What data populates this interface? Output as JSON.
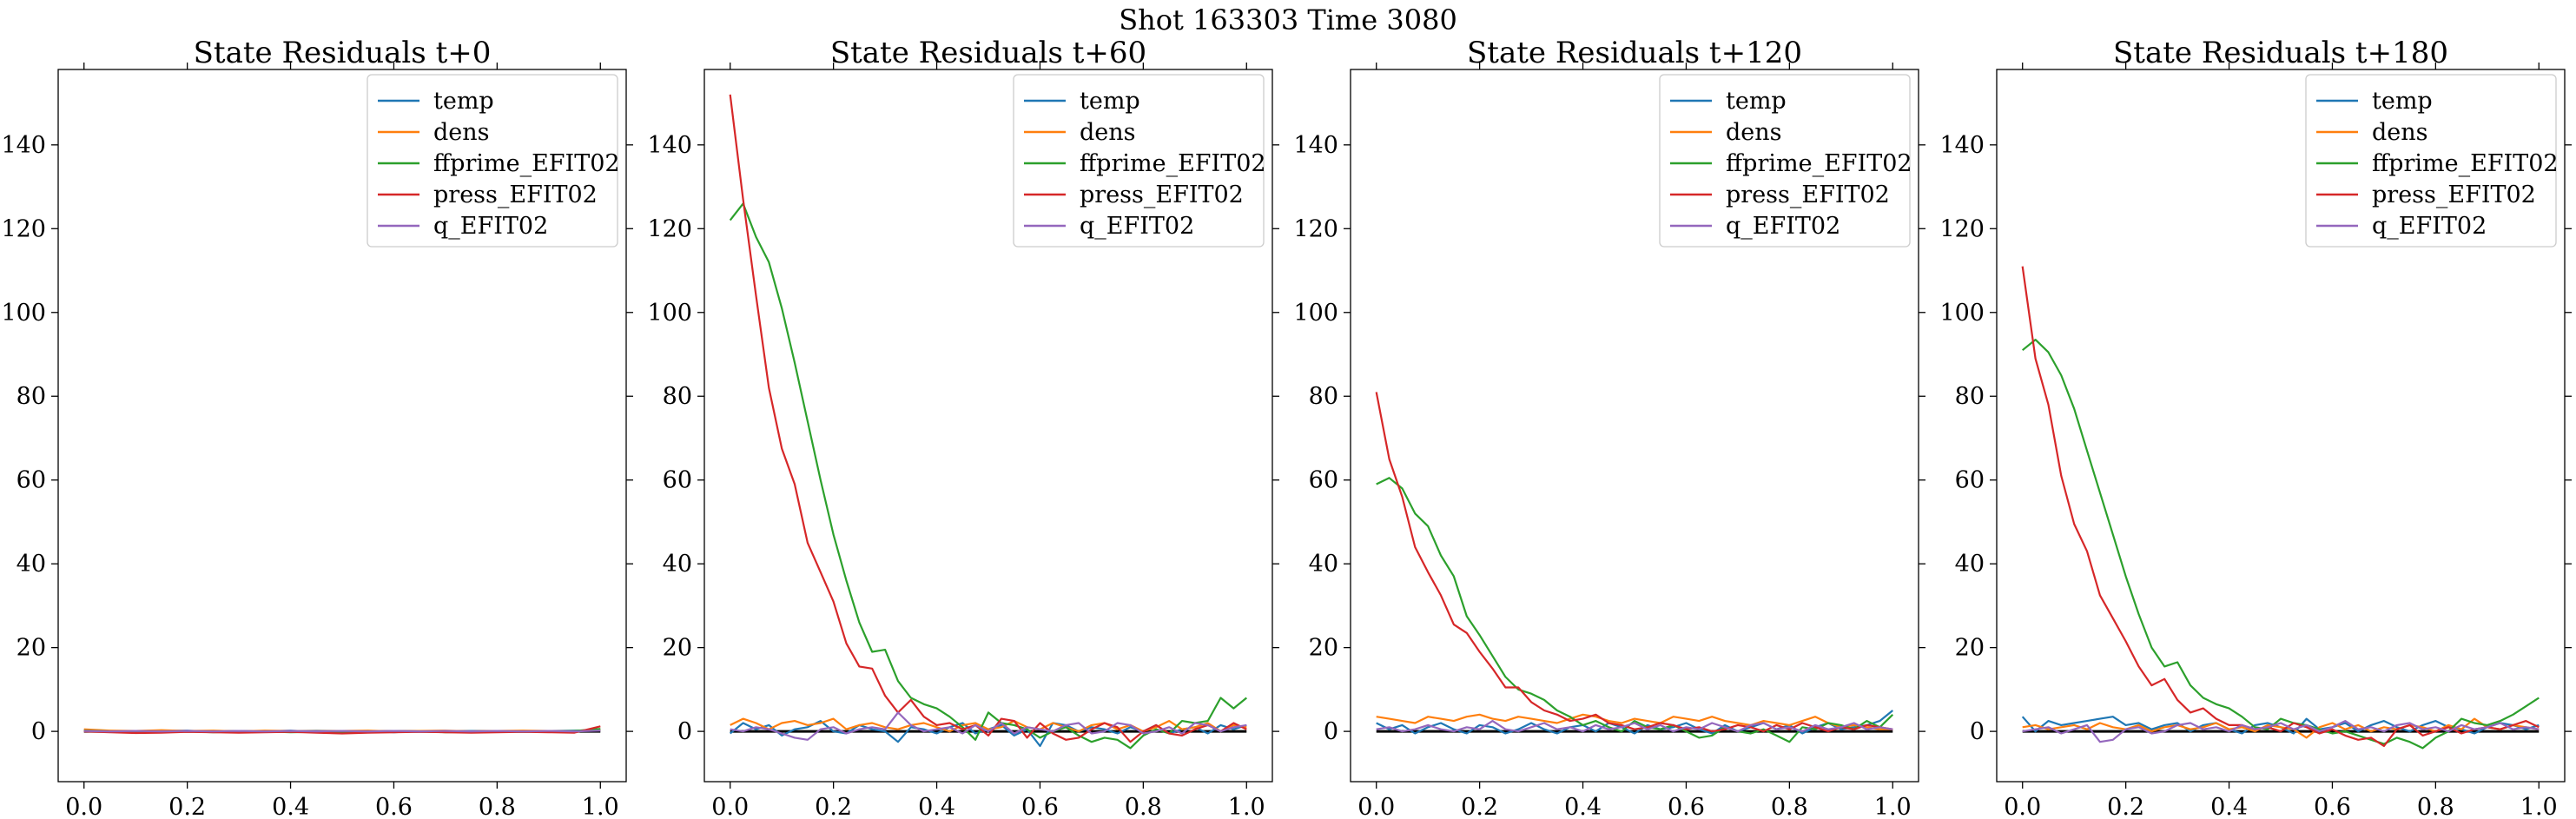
{
  "figure": {
    "suptitle": "Shot 163303   Time 3080"
  },
  "chart_data": [
    {
      "type": "line",
      "title": "State Residuals t+0",
      "xlim": [
        -0.05,
        1.05
      ],
      "ylim": [
        -12,
        158
      ],
      "xticks": [
        0.0,
        0.2,
        0.4,
        0.6,
        0.8,
        1.0
      ],
      "xtick_labels": [
        "0.0",
        "0.2",
        "0.4",
        "0.6",
        "0.8",
        "1.0"
      ],
      "yticks": [
        0,
        20,
        40,
        60,
        80,
        100,
        120,
        140
      ],
      "ytick_labels": [
        "0",
        "20",
        "40",
        "60",
        "80",
        "100",
        "120",
        "140"
      ],
      "legend": "top-right",
      "x": [
        0.0,
        0.05,
        0.1,
        0.15,
        0.2,
        0.25,
        0.3,
        0.35,
        0.4,
        0.45,
        0.5,
        0.55,
        0.6,
        0.65,
        0.7,
        0.75,
        0.8,
        0.85,
        0.9,
        0.95,
        1.0
      ],
      "series": [
        {
          "name": "temp",
          "color": "#1f77b4",
          "values": [
            0.3,
            0.1,
            -0.2,
            0.1,
            0.2,
            -0.1,
            0.1,
            0.0,
            0.2,
            -0.1,
            0.0,
            0.1,
            -0.2,
            0.1,
            0.0,
            0.1,
            -0.1,
            0.0,
            0.1,
            0.2,
            0.3
          ]
        },
        {
          "name": "dens",
          "color": "#ff7f0e",
          "values": [
            0.5,
            0.2,
            0.1,
            0.3,
            0.1,
            0.2,
            0.0,
            0.2,
            0.1,
            0.0,
            0.1,
            0.2,
            0.0,
            0.1,
            0.2,
            0.0,
            0.1,
            0.2,
            0.1,
            0.0,
            0.4
          ]
        },
        {
          "name": "ffprime_EFIT02",
          "color": "#2ca02c",
          "values": [
            0.2,
            0.0,
            -0.3,
            -0.1,
            0.0,
            -0.2,
            -0.1,
            0.0,
            -0.2,
            -0.1,
            -0.3,
            -0.2,
            -0.1,
            0.0,
            -0.2,
            -0.1,
            0.0,
            -0.1,
            0.0,
            0.1,
            0.6
          ]
        },
        {
          "name": "press_EFIT02",
          "color": "#d62728",
          "values": [
            0.0,
            -0.2,
            -0.4,
            -0.3,
            -0.1,
            -0.2,
            -0.3,
            -0.2,
            -0.1,
            -0.3,
            -0.5,
            -0.3,
            -0.2,
            -0.1,
            -0.2,
            -0.3,
            -0.2,
            -0.1,
            -0.2,
            -0.3,
            1.2
          ]
        },
        {
          "name": "q_EFIT02",
          "color": "#9467bd",
          "values": [
            0.1,
            0.0,
            0.1,
            0.0,
            0.1,
            0.0,
            0.1,
            0.0,
            0.1,
            0.0,
            0.1,
            0.0,
            0.1,
            0.0,
            0.1,
            0.0,
            0.1,
            0.0,
            0.1,
            0.0,
            0.2
          ]
        }
      ]
    },
    {
      "type": "line",
      "title": "State Residuals t+60",
      "xlim": [
        -0.05,
        1.05
      ],
      "ylim": [
        -12,
        158
      ],
      "xticks": [
        0.0,
        0.2,
        0.4,
        0.6,
        0.8,
        1.0
      ],
      "xtick_labels": [
        "0.0",
        "0.2",
        "0.4",
        "0.6",
        "0.8",
        "1.0"
      ],
      "yticks": [
        0,
        20,
        40,
        60,
        80,
        100,
        120,
        140
      ],
      "ytick_labels": [
        "0",
        "20",
        "40",
        "60",
        "80",
        "100",
        "120",
        "140"
      ],
      "legend": "top-right",
      "x": [
        0.0,
        0.025,
        0.05,
        0.075,
        0.1,
        0.125,
        0.15,
        0.175,
        0.2,
        0.225,
        0.25,
        0.275,
        0.3,
        0.325,
        0.35,
        0.375,
        0.4,
        0.425,
        0.45,
        0.475,
        0.5,
        0.525,
        0.55,
        0.575,
        0.6,
        0.625,
        0.65,
        0.675,
        0.7,
        0.725,
        0.75,
        0.775,
        0.8,
        0.825,
        0.85,
        0.875,
        0.9,
        0.925,
        0.95,
        0.975,
        1.0
      ],
      "series": [
        {
          "name": "temp",
          "color": "#1f77b4",
          "values": [
            -0.5,
            2.0,
            0.5,
            1.5,
            -1.0,
            0.5,
            1.0,
            2.5,
            0.0,
            -0.5,
            1.5,
            0.5,
            0.0,
            -2.5,
            1.0,
            0.5,
            -0.5,
            1.0,
            2.0,
            -0.5,
            0.5,
            1.5,
            -1.0,
            0.5,
            -3.5,
            2.0,
            1.5,
            0.0,
            1.0,
            0.5,
            -0.5,
            1.0,
            0.0,
            1.5,
            -0.5,
            0.5,
            1.0,
            -0.5,
            1.5,
            0.5,
            1.5
          ]
        },
        {
          "name": "dens",
          "color": "#ff7f0e",
          "values": [
            1.5,
            3.0,
            2.0,
            0.5,
            2.0,
            2.5,
            1.5,
            2.0,
            3.0,
            0.5,
            1.5,
            2.0,
            1.0,
            0.5,
            1.5,
            2.0,
            1.0,
            0.0,
            1.5,
            2.0,
            0.5,
            1.0,
            2.5,
            1.0,
            0.5,
            2.0,
            1.0,
            0.0,
            1.5,
            2.0,
            0.5,
            1.5,
            0.0,
            1.0,
            2.5,
            0.5,
            1.0,
            2.0,
            0.0,
            1.5,
            1.0
          ]
        },
        {
          "name": "ffprime_EFIT02",
          "color": "#2ca02c",
          "values": [
            122,
            126,
            118,
            112,
            101,
            88,
            74,
            60,
            47,
            36,
            26,
            19,
            19.5,
            12,
            8,
            6.5,
            5.5,
            3.5,
            1.0,
            -2.0,
            4.5,
            2.0,
            1.5,
            0.5,
            -1.5,
            0.0,
            1.0,
            -1.0,
            -2.5,
            -1.5,
            -2.0,
            -4.0,
            -1.0,
            0.5,
            -0.5,
            2.5,
            2.0,
            2.5,
            8.0,
            5.5,
            8.0
          ]
        },
        {
          "name": "press_EFIT02",
          "color": "#d62728",
          "values": [
            152,
            127,
            104,
            82,
            67.5,
            59,
            45,
            38,
            31,
            21,
            15.5,
            15,
            8.5,
            4.5,
            7.5,
            3.5,
            1.5,
            2.0,
            0.5,
            1.5,
            -1.0,
            3.0,
            2.5,
            -1.5,
            2.0,
            -0.5,
            -2.0,
            -1.5,
            0.5,
            2.0,
            1.0,
            -2.5,
            0.0,
            1.5,
            -0.5,
            -1.0,
            0.5,
            1.5,
            0.0,
            2.0,
            0.5
          ]
        },
        {
          "name": "q_EFIT02",
          "color": "#9467bd",
          "values": [
            0.5,
            0.0,
            1.0,
            0.5,
            -0.5,
            -1.5,
            -2.0,
            0.5,
            1.0,
            -0.5,
            0.5,
            1.0,
            0.5,
            4.5,
            1.5,
            0.0,
            0.5,
            1.0,
            -0.5,
            1.5,
            0.0,
            2.0,
            -0.5,
            1.0,
            0.5,
            0.0,
            1.5,
            2.0,
            -0.5,
            0.0,
            2.0,
            1.5,
            -0.5,
            0.0,
            1.0,
            -0.5,
            2.0,
            1.5,
            0.0,
            1.0,
            1.5
          ]
        }
      ]
    },
    {
      "type": "line",
      "title": "State Residuals t+120",
      "xlim": [
        -0.05,
        1.05
      ],
      "ylim": [
        -12,
        158
      ],
      "xticks": [
        0.0,
        0.2,
        0.4,
        0.6,
        0.8,
        1.0
      ],
      "xtick_labels": [
        "0.0",
        "0.2",
        "0.4",
        "0.6",
        "0.8",
        "1.0"
      ],
      "yticks": [
        0,
        20,
        40,
        60,
        80,
        100,
        120,
        140
      ],
      "ytick_labels": [
        "0",
        "20",
        "40",
        "60",
        "80",
        "100",
        "120",
        "140"
      ],
      "legend": "top-right",
      "x": [
        0.0,
        0.025,
        0.05,
        0.075,
        0.1,
        0.125,
        0.15,
        0.175,
        0.2,
        0.225,
        0.25,
        0.275,
        0.3,
        0.325,
        0.35,
        0.375,
        0.4,
        0.425,
        0.45,
        0.475,
        0.5,
        0.525,
        0.55,
        0.575,
        0.6,
        0.625,
        0.65,
        0.675,
        0.7,
        0.725,
        0.75,
        0.775,
        0.8,
        0.825,
        0.85,
        0.875,
        0.9,
        0.925,
        0.95,
        0.975,
        1.0
      ],
      "series": [
        {
          "name": "temp",
          "color": "#1f77b4",
          "values": [
            2.0,
            0.5,
            1.5,
            -0.5,
            1.0,
            2.0,
            0.5,
            -0.5,
            1.5,
            1.0,
            -0.5,
            0.5,
            2.0,
            0.5,
            -0.5,
            1.0,
            1.5,
            0.0,
            2.0,
            1.0,
            -0.5,
            1.5,
            0.5,
            1.0,
            2.0,
            0.5,
            -0.5,
            1.5,
            0.0,
            1.0,
            2.0,
            0.5,
            1.5,
            -0.5,
            1.0,
            2.0,
            0.5,
            1.0,
            1.5,
            2.5,
            5.0
          ]
        },
        {
          "name": "dens",
          "color": "#ff7f0e",
          "values": [
            3.5,
            3.0,
            2.5,
            2.0,
            3.5,
            3.0,
            2.5,
            3.5,
            4.0,
            3.0,
            2.5,
            3.5,
            3.0,
            2.5,
            2.0,
            3.0,
            4.0,
            3.5,
            2.5,
            2.0,
            3.0,
            2.5,
            2.0,
            3.5,
            3.0,
            2.5,
            3.5,
            2.5,
            2.0,
            1.5,
            2.5,
            2.0,
            1.5,
            2.5,
            3.5,
            2.0,
            1.0,
            1.5,
            1.0,
            0.5,
            0.5
          ]
        },
        {
          "name": "ffprime_EFIT02",
          "color": "#2ca02c",
          "values": [
            59,
            60.5,
            58,
            52,
            49,
            42,
            37,
            27.5,
            23,
            18,
            13,
            10,
            9,
            7.5,
            5.0,
            3.5,
            1.5,
            2.5,
            1.0,
            0.0,
            2.5,
            1.0,
            0.5,
            1.5,
            0.0,
            -1.5,
            -1.0,
            1.0,
            0.0,
            -0.5,
            0.5,
            -1.0,
            -2.5,
            1.0,
            0.5,
            2.0,
            1.5,
            0.5,
            2.5,
            1.0,
            4.0
          ]
        },
        {
          "name": "press_EFIT02",
          "color": "#d62728",
          "values": [
            81,
            65,
            56,
            44,
            38,
            32.5,
            25.5,
            23.5,
            19,
            15,
            10.5,
            10.5,
            7.0,
            5.0,
            4.0,
            2.5,
            3.0,
            4.0,
            2.0,
            1.5,
            0.5,
            1.0,
            2.0,
            1.5,
            0.5,
            1.0,
            0.0,
            0.5,
            1.5,
            1.0,
            0.0,
            1.5,
            0.5,
            2.0,
            1.0,
            0.0,
            1.0,
            0.5,
            1.5,
            1.0,
            0.5
          ]
        },
        {
          "name": "q_EFIT02",
          "color": "#9467bd",
          "values": [
            0.5,
            1.0,
            0.0,
            0.5,
            1.5,
            0.5,
            0.0,
            1.0,
            0.5,
            2.5,
            0.5,
            0.0,
            1.0,
            2.0,
            0.5,
            1.0,
            0.0,
            1.5,
            0.5,
            1.0,
            2.0,
            0.5,
            1.5,
            0.0,
            1.0,
            0.5,
            2.0,
            1.0,
            0.0,
            1.5,
            2.0,
            0.5,
            1.0,
            0.0,
            1.5,
            0.5,
            1.0,
            2.0,
            0.5,
            1.0,
            0.5
          ]
        }
      ]
    },
    {
      "type": "line",
      "title": "State Residuals t+180",
      "xlim": [
        -0.05,
        1.05
      ],
      "ylim": [
        -12,
        158
      ],
      "xticks": [
        0.0,
        0.2,
        0.4,
        0.6,
        0.8,
        1.0
      ],
      "xtick_labels": [
        "0.0",
        "0.2",
        "0.4",
        "0.6",
        "0.8",
        "1.0"
      ],
      "yticks": [
        0,
        20,
        40,
        60,
        80,
        100,
        120,
        140
      ],
      "ytick_labels": [
        "0",
        "20",
        "40",
        "60",
        "80",
        "100",
        "120",
        "140"
      ],
      "legend": "top-right",
      "x": [
        0.0,
        0.025,
        0.05,
        0.075,
        0.1,
        0.125,
        0.15,
        0.175,
        0.2,
        0.225,
        0.25,
        0.275,
        0.3,
        0.325,
        0.35,
        0.375,
        0.4,
        0.425,
        0.45,
        0.475,
        0.5,
        0.525,
        0.55,
        0.575,
        0.6,
        0.625,
        0.65,
        0.675,
        0.7,
        0.725,
        0.75,
        0.775,
        0.8,
        0.825,
        0.85,
        0.875,
        0.9,
        0.925,
        0.95,
        0.975,
        1.0
      ],
      "series": [
        {
          "name": "temp",
          "color": "#1f77b4",
          "values": [
            3.5,
            0.0,
            2.5,
            1.5,
            2.0,
            2.5,
            3.0,
            3.5,
            1.5,
            2.0,
            0.5,
            1.5,
            2.0,
            0.0,
            1.5,
            2.0,
            0.5,
            -0.5,
            1.5,
            2.0,
            1.0,
            -0.5,
            3.0,
            0.5,
            1.0,
            2.0,
            0.0,
            1.5,
            2.5,
            1.0,
            0.0,
            1.5,
            2.5,
            1.0,
            0.5,
            -0.5,
            1.0,
            2.0,
            1.5,
            0.5,
            1.5
          ]
        },
        {
          "name": "dens",
          "color": "#ff7f0e",
          "values": [
            1.0,
            1.5,
            0.5,
            1.0,
            1.5,
            0.5,
            2.0,
            1.0,
            0.5,
            1.5,
            0.0,
            1.0,
            1.5,
            0.5,
            1.0,
            2.0,
            0.5,
            1.0,
            0.0,
            1.5,
            1.0,
            0.5,
            -1.5,
            1.0,
            2.0,
            0.5,
            1.5,
            0.0,
            1.0,
            0.5,
            1.5,
            1.0,
            0.0,
            1.5,
            0.5,
            3.0,
            1.0,
            0.5,
            1.5,
            1.0,
            0.5
          ]
        },
        {
          "name": "ffprime_EFIT02",
          "color": "#2ca02c",
          "values": [
            91,
            93.5,
            90.5,
            85,
            77,
            67,
            57,
            47,
            37,
            28,
            20,
            15.5,
            16.5,
            11,
            8,
            6.5,
            5.5,
            3.5,
            1.0,
            0.5,
            3.0,
            2.0,
            1.5,
            0.5,
            -0.5,
            0.0,
            -1.0,
            -2.0,
            -3.0,
            -1.5,
            -2.5,
            -4.0,
            -1.5,
            0.0,
            3.0,
            2.0,
            1.5,
            2.5,
            4.0,
            6.0,
            8.0
          ]
        },
        {
          "name": "press_EFIT02",
          "color": "#d62728",
          "values": [
            111,
            89,
            78,
            61,
            49.5,
            43,
            32.5,
            27,
            21.5,
            15.5,
            11,
            12.5,
            7.5,
            4.5,
            5.5,
            3.0,
            1.5,
            1.5,
            0.5,
            1.0,
            0.0,
            2.0,
            1.0,
            -0.5,
            0.5,
            -1.0,
            -2.0,
            -1.5,
            -3.5,
            0.5,
            1.5,
            -1.0,
            0.0,
            1.0,
            -0.5,
            0.5,
            1.0,
            0.5,
            1.5,
            2.5,
            1.0
          ]
        },
        {
          "name": "q_EFIT02",
          "color": "#9467bd",
          "values": [
            0.0,
            0.5,
            1.0,
            -0.5,
            0.5,
            1.5,
            -2.5,
            -2.0,
            0.5,
            1.0,
            -0.5,
            0.0,
            1.5,
            2.0,
            0.5,
            1.0,
            0.0,
            1.5,
            0.5,
            1.0,
            2.0,
            0.5,
            1.5,
            0.0,
            1.0,
            2.5,
            0.5,
            1.0,
            0.0,
            1.5,
            2.0,
            0.5,
            1.0,
            0.0,
            1.5,
            0.5,
            1.0,
            2.0,
            0.5,
            1.0,
            0.5
          ]
        }
      ]
    }
  ]
}
